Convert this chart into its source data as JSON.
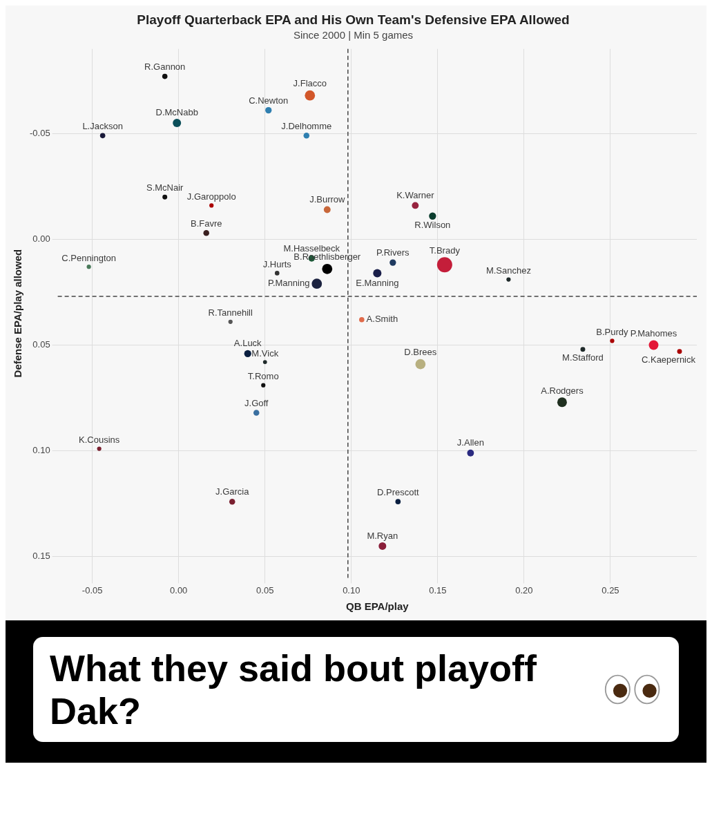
{
  "chart_data": {
    "type": "bubble",
    "title": "Playoff Quarterback EPA and His Own Team's Defensive EPA Allowed",
    "subtitle": "Since 2000 | Min 5 games",
    "xlabel": "QB EPA/play",
    "ylabel": "Defense EPA/play allowed",
    "xlim": [
      -0.07,
      0.3
    ],
    "xticks": [
      {
        "value": -0.05,
        "label": "-0.05"
      },
      {
        "value": 0,
        "label": "0.00"
      },
      {
        "value": 0.05,
        "label": "0.05"
      },
      {
        "value": 0.1,
        "label": "0.10"
      },
      {
        "value": 0.15,
        "label": "0.15"
      },
      {
        "value": 0.2,
        "label": "0.20"
      },
      {
        "value": 0.25,
        "label": "0.25"
      }
    ],
    "ylim": [
      0.16,
      -0.09
    ],
    "yticks": [
      {
        "value": -0.05,
        "label": "-0.05"
      },
      {
        "value": 0,
        "label": "0.00"
      },
      {
        "value": 0.05,
        "label": "0.05"
      },
      {
        "value": 0.1,
        "label": "0.10"
      },
      {
        "value": 0.15,
        "label": "0.15"
      }
    ],
    "grid": true,
    "legend": false,
    "marker": "circle",
    "ref_lines": [
      {
        "axis": "x",
        "value": 0.098,
        "color": "#444444",
        "line_style": "dashed"
      },
      {
        "axis": "y",
        "value": 0.027,
        "color": "#444444",
        "line_style": "dashed"
      }
    ],
    "series": [
      {
        "name": "R.Gannon",
        "color": "#111111",
        "x": [
          -0.008
        ],
        "values": [
          -0.077
        ],
        "sizes": [
          0.12
        ]
      },
      {
        "name": "D.McNabb",
        "color": "#0b4f5a",
        "x": [
          -0.001
        ],
        "values": [
          -0.055
        ],
        "sizes": [
          0.3
        ]
      },
      {
        "name": "L.Jackson",
        "color": "#1a1a3a",
        "x": [
          -0.044
        ],
        "values": [
          -0.049
        ],
        "sizes": [
          0.12
        ]
      },
      {
        "name": "C.Newton",
        "color": "#2f7fb0",
        "x": [
          0.052
        ],
        "values": [
          -0.061
        ],
        "sizes": [
          0.18
        ]
      },
      {
        "name": "J.Flacco",
        "color": "#d2572a",
        "x": [
          0.076
        ],
        "values": [
          -0.068
        ],
        "sizes": [
          0.45
        ]
      },
      {
        "name": "J.Delhomme",
        "color": "#2f7fb0",
        "x": [
          0.074
        ],
        "values": [
          -0.049
        ],
        "sizes": [
          0.15
        ]
      },
      {
        "name": "S.McNair",
        "color": "#111111",
        "x": [
          -0.008
        ],
        "values": [
          -0.02
        ],
        "sizes": [
          0.1
        ]
      },
      {
        "name": "J.Garoppolo",
        "color": "#aa0000",
        "x": [
          0.019
        ],
        "values": [
          -0.016
        ],
        "sizes": [
          0.08
        ]
      },
      {
        "name": "B.Favre",
        "color": "#3a2020",
        "x": [
          0.016
        ],
        "values": [
          -0.003
        ],
        "sizes": [
          0.15
        ]
      },
      {
        "name": "J.Burrow",
        "color": "#c8673a",
        "x": [
          0.086
        ],
        "values": [
          -0.014
        ],
        "sizes": [
          0.2
        ]
      },
      {
        "name": "K.Warner",
        "color": "#97233f",
        "x": [
          0.137
        ],
        "values": [
          -0.016
        ],
        "sizes": [
          0.2
        ]
      },
      {
        "name": "R.Wilson",
        "color": "#0b3d2e",
        "x": [
          0.147
        ],
        "values": [
          -0.011
        ],
        "sizes": [
          0.22
        ]
      },
      {
        "name": "C.Pennington",
        "color": "#4a7a5a",
        "x": [
          -0.052
        ],
        "values": [
          0.013
        ],
        "sizes": [
          0.08
        ]
      },
      {
        "name": "M.Hasselbeck",
        "color": "#1f5a3a",
        "x": [
          0.077
        ],
        "values": [
          0.009
        ],
        "sizes": [
          0.18
        ]
      },
      {
        "name": "J.Hurts",
        "color": "#333333",
        "x": [
          0.057
        ],
        "values": [
          0.016
        ],
        "sizes": [
          0.09
        ]
      },
      {
        "name": "B.Roethlisberger",
        "color": "#000000",
        "x": [
          0.086
        ],
        "values": [
          0.014
        ],
        "sizes": [
          0.45
        ]
      },
      {
        "name": "P.Manning",
        "color": "#1c2340",
        "x": [
          0.08
        ],
        "values": [
          0.021
        ],
        "sizes": [
          0.45
        ]
      },
      {
        "name": "P.Rivers",
        "color": "#1f3a60",
        "x": [
          0.124
        ],
        "values": [
          0.011
        ],
        "sizes": [
          0.18
        ]
      },
      {
        "name": "E.Manning",
        "color": "#1a1f4a",
        "x": [
          0.115
        ],
        "values": [
          0.016
        ],
        "sizes": [
          0.3
        ]
      },
      {
        "name": "T.Brady",
        "color": "#c41e3a",
        "x": [
          0.154
        ],
        "values": [
          0.012
        ],
        "sizes": [
          1
        ]
      },
      {
        "name": "M.Sanchez",
        "color": "#1f2a2a",
        "x": [
          0.191
        ],
        "values": [
          0.019
        ],
        "sizes": [
          0.08
        ]
      },
      {
        "name": "R.Tannehill",
        "color": "#555555",
        "x": [
          0.03
        ],
        "values": [
          0.039
        ],
        "sizes": [
          0.08
        ]
      },
      {
        "name": "A.Smith",
        "color": "#e06a4a",
        "x": [
          0.106
        ],
        "values": [
          0.038
        ],
        "sizes": [
          0.12
        ]
      },
      {
        "name": "B.Purdy",
        "color": "#aa0000",
        "x": [
          0.251
        ],
        "values": [
          0.048
        ],
        "sizes": [
          0.08
        ]
      },
      {
        "name": "P.Mahomes",
        "color": "#e31837",
        "x": [
          0.275
        ],
        "values": [
          0.05
        ],
        "sizes": [
          0.4
        ]
      },
      {
        "name": "C.Kaepernick",
        "color": "#aa0000",
        "x": [
          0.29
        ],
        "values": [
          0.053
        ],
        "sizes": [
          0.1
        ]
      },
      {
        "name": "M.Stafford",
        "color": "#1f2a2a",
        "x": [
          0.234
        ],
        "values": [
          0.052
        ],
        "sizes": [
          0.1
        ]
      },
      {
        "name": "A.Luck",
        "color": "#0a1f40",
        "x": [
          0.04
        ],
        "values": [
          0.054
        ],
        "sizes": [
          0.22
        ]
      },
      {
        "name": "M.Vick",
        "color": "#1f2a2a",
        "x": [
          0.05
        ],
        "values": [
          0.058
        ],
        "sizes": [
          0.07
        ]
      },
      {
        "name": "D.Brees",
        "color": "#b8b080",
        "x": [
          0.14
        ],
        "values": [
          0.059
        ],
        "sizes": [
          0.45
        ]
      },
      {
        "name": "T.Romo",
        "color": "#111111",
        "x": [
          0.049
        ],
        "values": [
          0.069
        ],
        "sizes": [
          0.08
        ]
      },
      {
        "name": "A.Rodgers",
        "color": "#203020",
        "x": [
          0.222
        ],
        "values": [
          0.077
        ],
        "sizes": [
          0.4
        ]
      },
      {
        "name": "J.Goff",
        "color": "#3a6fa0",
        "x": [
          0.045
        ],
        "values": [
          0.082
        ],
        "sizes": [
          0.15
        ]
      },
      {
        "name": "K.Cousins",
        "color": "#7a2030",
        "x": [
          -0.046
        ],
        "values": [
          0.099
        ],
        "sizes": [
          0.08
        ]
      },
      {
        "name": "J.Allen",
        "color": "#2a2a80",
        "x": [
          0.169
        ],
        "values": [
          0.101
        ],
        "sizes": [
          0.2
        ]
      },
      {
        "name": "D.Prescott",
        "color": "#0a1f40",
        "x": [
          0.127
        ],
        "values": [
          0.124
        ],
        "sizes": [
          0.12
        ]
      },
      {
        "name": "J.Garcia",
        "color": "#7a2030",
        "x": [
          0.031
        ],
        "values": [
          0.124
        ],
        "sizes": [
          0.15
        ]
      },
      {
        "name": "M.Ryan",
        "color": "#8a1f3a",
        "x": [
          0.118
        ],
        "values": [
          0.145
        ],
        "sizes": [
          0.25
        ]
      }
    ],
    "annotations": [
      "What they said bout playoff Dak?"
    ]
  }
}
